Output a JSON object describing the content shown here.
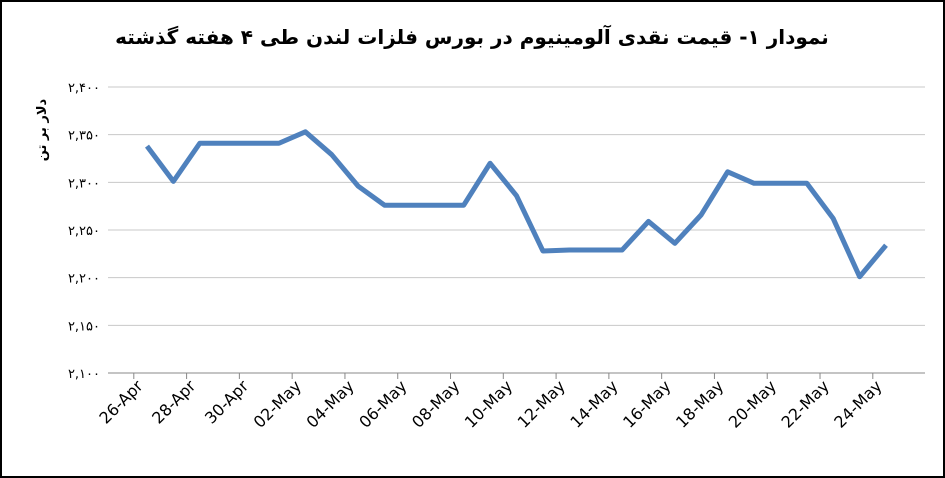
{
  "chart_data": {
    "type": "line",
    "title": "نمودار ۱- قیمت نقدی آلومینیوم در بورس فلزات لندن طی ۴ هفته گذشته",
    "y_label": "دلار بر تن",
    "categories": [
      "26-Apr",
      null,
      "28-Apr",
      null,
      "30-Apr",
      null,
      "02-May",
      null,
      "04-May",
      null,
      "06-May",
      null,
      "08-May",
      null,
      "10-May",
      null,
      "12-May",
      null,
      "14-May",
      null,
      "16-May",
      null,
      "18-May",
      null,
      "20-May",
      null,
      "22-May",
      null,
      "24-May"
    ],
    "values": [
      2338,
      2301,
      2341,
      2341,
      2341,
      2341,
      2353,
      2329,
      2296,
      2276,
      2276,
      2276,
      2276,
      2320,
      2286,
      2228,
      2229,
      2229,
      2229,
      2259,
      2236,
      2266,
      2311,
      2299,
      2299,
      2299,
      2262,
      2201,
      2234
    ],
    "color": "#4f81bd",
    "ylim": [
      2100,
      2400
    ],
    "yticks": [
      {
        "value": 2100,
        "label": "۲,۱۰۰"
      },
      {
        "value": 2150,
        "label": "۲,۱۵۰"
      },
      {
        "value": 2200,
        "label": "۲,۲۰۰"
      },
      {
        "value": 2250,
        "label": "۲,۲۵۰"
      },
      {
        "value": 2300,
        "label": "۲,۳۰۰"
      },
      {
        "value": 2350,
        "label": "۲,۳۵۰"
      },
      {
        "value": 2400,
        "label": "۲,۴۰۰"
      }
    ],
    "grid": true
  }
}
